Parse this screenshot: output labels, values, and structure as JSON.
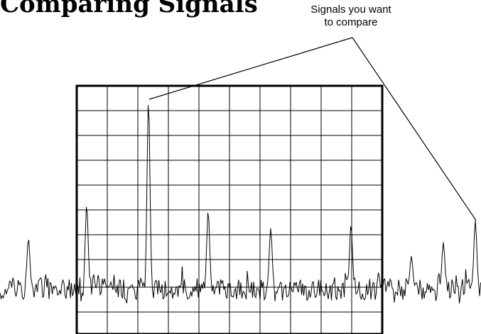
{
  "heading": {
    "text": "Comparing Signals"
  },
  "callout": {
    "lines": [
      "Signals you want",
      "to compare"
    ]
  },
  "graticule": {
    "columns": 10,
    "rows": 9
  },
  "peaks": [
    {
      "id": "peak-1",
      "relative_height": 0.42
    },
    {
      "id": "peak-2-marked",
      "relative_height": 0.95,
      "marked": true
    },
    {
      "id": "peak-3",
      "relative_height": 0.39
    },
    {
      "id": "peak-4",
      "relative_height": 0.3
    },
    {
      "id": "peak-5",
      "relative_height": 0.32
    },
    {
      "id": "peak-left-outside",
      "relative_height": 0.25
    },
    {
      "id": "peak-right-outside-1",
      "relative_height": 0.16
    },
    {
      "id": "peak-right-outside-2",
      "relative_height": 0.23
    },
    {
      "id": "peak-right-outside-3",
      "relative_height": 0.34,
      "marked": true
    }
  ],
  "colors": {
    "ink": "#000000",
    "background": "#ffffff"
  }
}
